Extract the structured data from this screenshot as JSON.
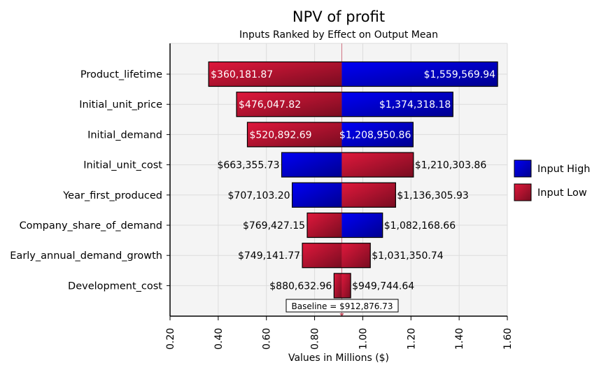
{
  "chart_data": {
    "type": "bar",
    "subtype": "tornado",
    "title": "NPV of profit",
    "subtitle": "Inputs Ranked by Effect on Output Mean",
    "xlabel": "Values in Millions ($)",
    "xlim": [
      0.2,
      1.6
    ],
    "xticks": [
      "0.20",
      "0.40",
      "0.60",
      "0.80",
      "1.00",
      "1.20",
      "1.40",
      "1.60"
    ],
    "grid": true,
    "baseline": 0.91287673,
    "baseline_label": "Baseline = $912,876.73",
    "legend_position": "right",
    "legend": [
      {
        "name": "Input High",
        "color": "#0000cc"
      },
      {
        "name": "Input Low",
        "color": "#b01030"
      }
    ],
    "categories": [
      "Product_lifetime",
      "Initial_unit_price",
      "Initial_demand",
      "Initial_unit_cost",
      "Year_first_produced",
      "Company_share_of_demand",
      "Early_annual_demand_growth",
      "Development_cost"
    ],
    "bars": [
      {
        "left": 0.36018187,
        "left_label": "$360,181.87",
        "left_series": "Input Low",
        "right": 1.55956994,
        "right_label": "$1,559,569.94",
        "right_series": "Input High",
        "labels_inside": true
      },
      {
        "left": 0.47604782,
        "left_label": "$476,047.82",
        "left_series": "Input Low",
        "right": 1.37431818,
        "right_label": "$1,374,318.18",
        "right_series": "Input High",
        "labels_inside": true
      },
      {
        "left": 0.52089269,
        "left_label": "$520,892.69",
        "left_series": "Input Low",
        "right": 1.20895086,
        "right_label": "$1,208,950.86",
        "right_series": "Input High",
        "labels_inside": true
      },
      {
        "left": 0.66335573,
        "left_label": "$663,355.73",
        "left_series": "Input High",
        "right": 1.21030386,
        "right_label": "$1,210,303.86",
        "right_series": "Input Low",
        "labels_inside": false
      },
      {
        "left": 0.7071032,
        "left_label": "$707,103.20",
        "left_series": "Input High",
        "right": 1.13630593,
        "right_label": "$1,136,305.93",
        "right_series": "Input Low",
        "labels_inside": false
      },
      {
        "left": 0.76942715,
        "left_label": "$769,427.15",
        "left_series": "Input Low",
        "right": 1.08216866,
        "right_label": "$1,082,168.66",
        "right_series": "Input High",
        "labels_inside": false
      },
      {
        "left": 0.74914177,
        "left_label": "$749,141.77",
        "left_series": "Input Low",
        "right": 1.03135074,
        "right_label": "$1,031,350.74",
        "right_series": "Input Low",
        "labels_inside": false
      },
      {
        "left": 0.88063296,
        "left_label": "$880,632.96",
        "left_series": "Input Low",
        "right": 0.94974464,
        "right_label": "$949,744.64",
        "right_series": "Input Low",
        "labels_inside": false
      }
    ]
  }
}
